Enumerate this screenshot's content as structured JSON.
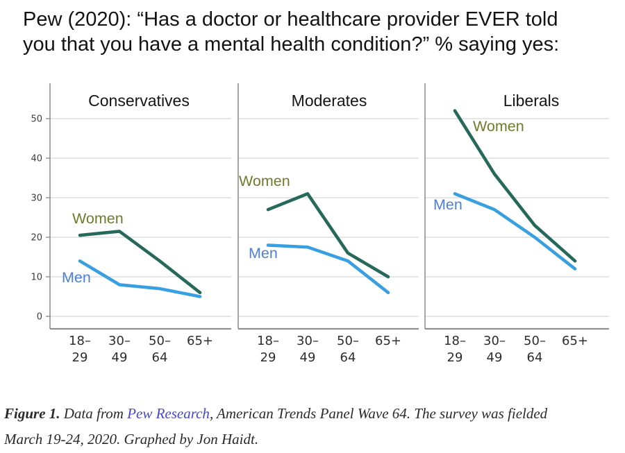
{
  "header": {
    "title_line1": "Pew (2020): “Has a doctor or healthcare provider EVER told",
    "title_line2": "you that you have a mental health condition?” % saying yes:"
  },
  "chart_data": {
    "type": "line",
    "categories": [
      "18-29",
      "30-49",
      "50-64",
      "65+"
    ],
    "categories_display": [
      [
        "18–",
        "29"
      ],
      [
        "30–",
        "49"
      ],
      [
        "50–",
        "64"
      ],
      [
        "65+"
      ]
    ],
    "yticks": [
      0,
      10,
      20,
      30,
      40,
      50
    ],
    "ylim": [
      0,
      59
    ],
    "grid": true,
    "legend_position": "inline-labels",
    "panels": [
      {
        "title": "Conservatives",
        "series": [
          {
            "name": "Women",
            "values": [
              20.5,
              21.5,
              14,
              6
            ]
          },
          {
            "name": "Men",
            "values": [
              14,
              8,
              7,
              5
            ]
          }
        ]
      },
      {
        "title": "Moderates",
        "series": [
          {
            "name": "Women",
            "values": [
              27,
              31,
              16,
              10
            ]
          },
          {
            "name": "Men",
            "values": [
              18,
              17.5,
              14,
              6
            ]
          }
        ]
      },
      {
        "title": "Liberals",
        "series": [
          {
            "name": "Women",
            "values": [
              52,
              36,
              23,
              14
            ]
          },
          {
            "name": "Men",
            "values": [
              31,
              27,
              20,
              12
            ]
          }
        ]
      }
    ],
    "series_colors": {
      "Women": "#26695a",
      "Men": "#38a0e0"
    },
    "label_colors": {
      "Women": "#6f7b2b",
      "Men": "#4d80d4"
    },
    "grid_color": "#cdcdcd",
    "spine_color": "#8f8f8f",
    "tick_label_color": "#3c3c3c",
    "x_label_color": "#2d2d2d",
    "panel_title_color": "#141414"
  },
  "caption": {
    "figure_label": "Figure 1.",
    "pre_link": "  Data from ",
    "link_text": "Pew Research",
    "post_link": ", American Trends Panel Wave 64. The survey was fielded",
    "line2": "March 19-24, 2020. Graphed by Jon Haidt."
  }
}
